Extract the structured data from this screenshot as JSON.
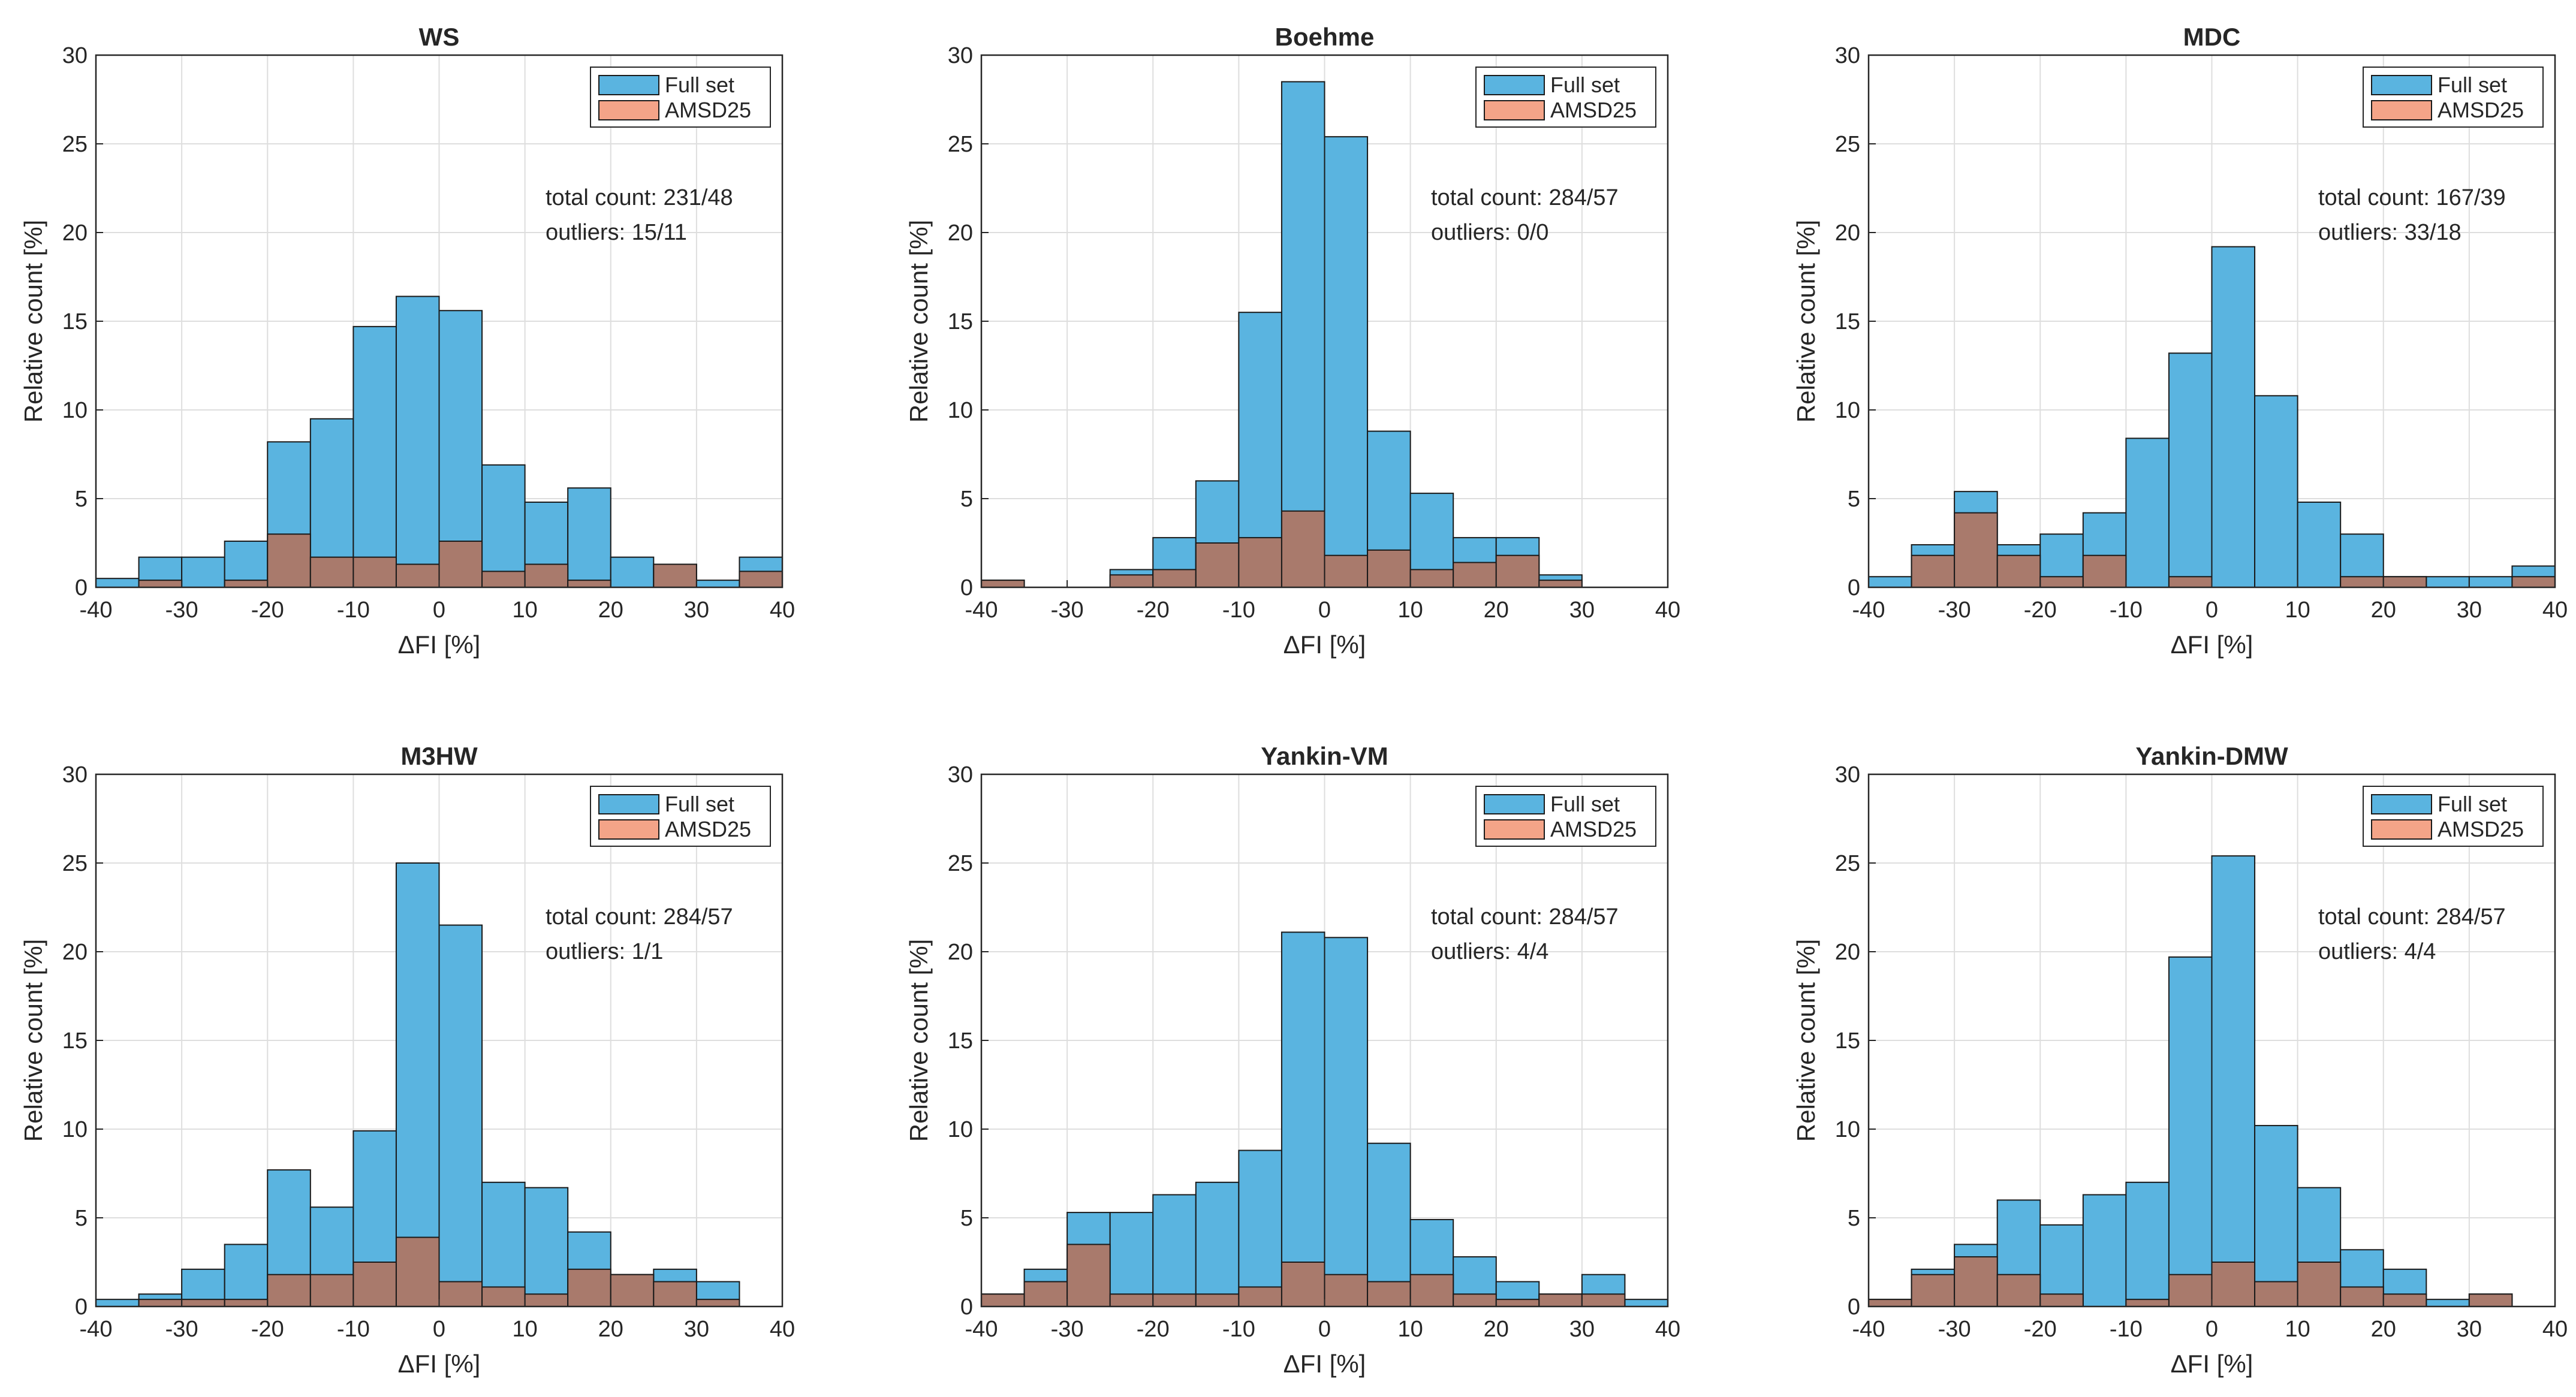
{
  "figure": {
    "series_names": [
      "Full set",
      "AMSD25"
    ],
    "colors": {
      "full_set": "#5ab4e0",
      "amsd25": "#f4a488",
      "overlap": "#a97a6c",
      "grid": "#dedede",
      "axis": "#262626"
    }
  },
  "chart_data": [
    {
      "type": "bar",
      "title": "WS",
      "xlabel": "ΔFI [%]",
      "ylabel": "Relative count [%]",
      "xlim": [
        -40,
        40
      ],
      "ylim": [
        0,
        30
      ],
      "xticks": [
        -40,
        -30,
        -20,
        -10,
        0,
        10,
        20,
        30,
        40
      ],
      "yticks": [
        0,
        5,
        10,
        15,
        20,
        25,
        30
      ],
      "legend": "top-right",
      "legend_labels": [
        "Full set",
        "AMSD25"
      ],
      "annotation": [
        "total count: 231/48",
        "outliers: 15/11"
      ],
      "bin_edges": [
        -40,
        -35,
        -30,
        -25,
        -20,
        -15,
        -10,
        -5,
        0,
        5,
        10,
        15,
        20,
        25,
        30,
        35,
        40
      ],
      "series": [
        {
          "name": "Full set",
          "values": [
            0.5,
            1.7,
            1.7,
            2.6,
            8.2,
            9.5,
            14.7,
            16.4,
            15.6,
            6.9,
            4.8,
            5.6,
            1.7,
            1.3,
            0.4,
            1.7
          ]
        },
        {
          "name": "AMSD25",
          "values": [
            0,
            0.4,
            0,
            0.4,
            3.0,
            1.7,
            1.7,
            1.3,
            2.6,
            0.9,
            1.3,
            0.4,
            0,
            1.3,
            0,
            0.9
          ]
        }
      ]
    },
    {
      "type": "bar",
      "title": "Boehme",
      "xlabel": "ΔFI [%]",
      "ylabel": "Relative count [%]",
      "xlim": [
        -40,
        40
      ],
      "ylim": [
        0,
        30
      ],
      "xticks": [
        -40,
        -30,
        -20,
        -10,
        0,
        10,
        20,
        30,
        40
      ],
      "yticks": [
        0,
        5,
        10,
        15,
        20,
        25,
        30
      ],
      "legend": "top-right",
      "legend_labels": [
        "Full set",
        "AMSD25"
      ],
      "annotation": [
        "total count: 284/57",
        "outliers: 0/0"
      ],
      "bin_edges": [
        -40,
        -35,
        -30,
        -25,
        -20,
        -15,
        -10,
        -5,
        0,
        5,
        10,
        15,
        20,
        25,
        30,
        35,
        40
      ],
      "series": [
        {
          "name": "Full set",
          "values": [
            0.4,
            0,
            0,
            1.0,
            2.8,
            6.0,
            15.5,
            28.5,
            25.4,
            8.8,
            5.3,
            2.8,
            2.8,
            0.7,
            0,
            0
          ]
        },
        {
          "name": "AMSD25",
          "values": [
            0.4,
            0,
            0,
            0.7,
            1.0,
            2.5,
            2.8,
            4.3,
            1.8,
            2.1,
            1.0,
            1.4,
            1.8,
            0.4,
            0,
            0
          ]
        }
      ]
    },
    {
      "type": "bar",
      "title": "MDC",
      "xlabel": "ΔFI [%]",
      "ylabel": "Relative count [%]",
      "xlim": [
        -40,
        40
      ],
      "ylim": [
        0,
        30
      ],
      "xticks": [
        -40,
        -30,
        -20,
        -10,
        0,
        10,
        20,
        30,
        40
      ],
      "yticks": [
        0,
        5,
        10,
        15,
        20,
        25,
        30
      ],
      "legend": "top-right",
      "legend_labels": [
        "Full set",
        "AMSD25"
      ],
      "annotation": [
        "total count: 167/39",
        "outliers: 33/18"
      ],
      "bin_edges": [
        -40,
        -35,
        -30,
        -25,
        -20,
        -15,
        -10,
        -5,
        0,
        5,
        10,
        15,
        20,
        25,
        30,
        35,
        40
      ],
      "series": [
        {
          "name": "Full set",
          "values": [
            0.6,
            2.4,
            5.4,
            2.4,
            3.0,
            4.2,
            8.4,
            13.2,
            19.2,
            10.8,
            4.8,
            3.0,
            0.6,
            0.6,
            0.6,
            1.2
          ]
        },
        {
          "name": "AMSD25",
          "values": [
            0,
            1.8,
            4.2,
            1.8,
            0.6,
            1.8,
            0,
            0.6,
            0,
            0,
            0,
            0.6,
            0.6,
            0,
            0,
            0.6
          ]
        }
      ]
    },
    {
      "type": "bar",
      "title": "M3HW",
      "xlabel": "ΔFI [%]",
      "ylabel": "Relative count [%]",
      "xlim": [
        -40,
        40
      ],
      "ylim": [
        0,
        30
      ],
      "xticks": [
        -40,
        -30,
        -20,
        -10,
        0,
        10,
        20,
        30,
        40
      ],
      "yticks": [
        0,
        5,
        10,
        15,
        20,
        25,
        30
      ],
      "legend": "top-right",
      "legend_labels": [
        "Full set",
        "AMSD25"
      ],
      "annotation": [
        "total count: 284/57",
        "outliers: 1/1"
      ],
      "bin_edges": [
        -40,
        -35,
        -30,
        -25,
        -20,
        -15,
        -10,
        -5,
        0,
        5,
        10,
        15,
        20,
        25,
        30,
        35,
        40
      ],
      "series": [
        {
          "name": "Full set",
          "values": [
            0.4,
            0.7,
            2.1,
            3.5,
            7.7,
            5.6,
            9.9,
            25.0,
            21.5,
            7.0,
            6.7,
            4.2,
            1.8,
            2.1,
            1.4,
            0
          ]
        },
        {
          "name": "AMSD25",
          "values": [
            0,
            0.4,
            0.4,
            0.4,
            1.8,
            1.8,
            2.5,
            3.9,
            1.4,
            1.1,
            0.7,
            2.1,
            1.8,
            1.4,
            0.4,
            0
          ]
        }
      ]
    },
    {
      "type": "bar",
      "title": "Yankin-VM",
      "xlabel": "ΔFI [%]",
      "ylabel": "Relative count [%]",
      "xlim": [
        -40,
        40
      ],
      "ylim": [
        0,
        30
      ],
      "xticks": [
        -40,
        -30,
        -20,
        -10,
        0,
        10,
        20,
        30,
        40
      ],
      "yticks": [
        0,
        5,
        10,
        15,
        20,
        25,
        30
      ],
      "legend": "top-right",
      "legend_labels": [
        "Full set",
        "AMSD25"
      ],
      "annotation": [
        "total count: 284/57",
        "outliers: 4/4"
      ],
      "bin_edges": [
        -40,
        -35,
        -30,
        -25,
        -20,
        -15,
        -10,
        -5,
        0,
        5,
        10,
        15,
        20,
        25,
        30,
        35,
        40
      ],
      "series": [
        {
          "name": "Full set",
          "values": [
            0.7,
            2.1,
            5.3,
            5.3,
            6.3,
            7.0,
            8.8,
            21.1,
            20.8,
            9.2,
            4.9,
            2.8,
            1.4,
            0.7,
            1.8,
            0.4
          ]
        },
        {
          "name": "AMSD25",
          "values": [
            0.7,
            1.4,
            3.5,
            0.7,
            0.7,
            0.7,
            1.1,
            2.5,
            1.8,
            1.4,
            1.8,
            0.7,
            0.4,
            0.7,
            0.7,
            0
          ]
        }
      ]
    },
    {
      "type": "bar",
      "title": "Yankin-DMW",
      "xlabel": "ΔFI [%]",
      "ylabel": "Relative count [%]",
      "xlim": [
        -40,
        40
      ],
      "ylim": [
        0,
        30
      ],
      "xticks": [
        -40,
        -30,
        -20,
        -10,
        0,
        10,
        20,
        30,
        40
      ],
      "yticks": [
        0,
        5,
        10,
        15,
        20,
        25,
        30
      ],
      "legend": "top-right",
      "legend_labels": [
        "Full set",
        "AMSD25"
      ],
      "annotation": [
        "total count: 284/57",
        "outliers: 4/4"
      ],
      "bin_edges": [
        -40,
        -35,
        -30,
        -25,
        -20,
        -15,
        -10,
        -5,
        0,
        5,
        10,
        15,
        20,
        25,
        30,
        35,
        40
      ],
      "series": [
        {
          "name": "Full set",
          "values": [
            0.4,
            2.1,
            3.5,
            6.0,
            4.6,
            6.3,
            7.0,
            19.7,
            25.4,
            10.2,
            6.7,
            3.2,
            2.1,
            0.4,
            0.7,
            0
          ]
        },
        {
          "name": "AMSD25",
          "values": [
            0.4,
            1.8,
            2.8,
            1.8,
            0.7,
            0,
            0.4,
            1.8,
            2.5,
            1.4,
            2.5,
            1.1,
            0.7,
            0,
            0.7,
            0
          ]
        }
      ]
    }
  ]
}
